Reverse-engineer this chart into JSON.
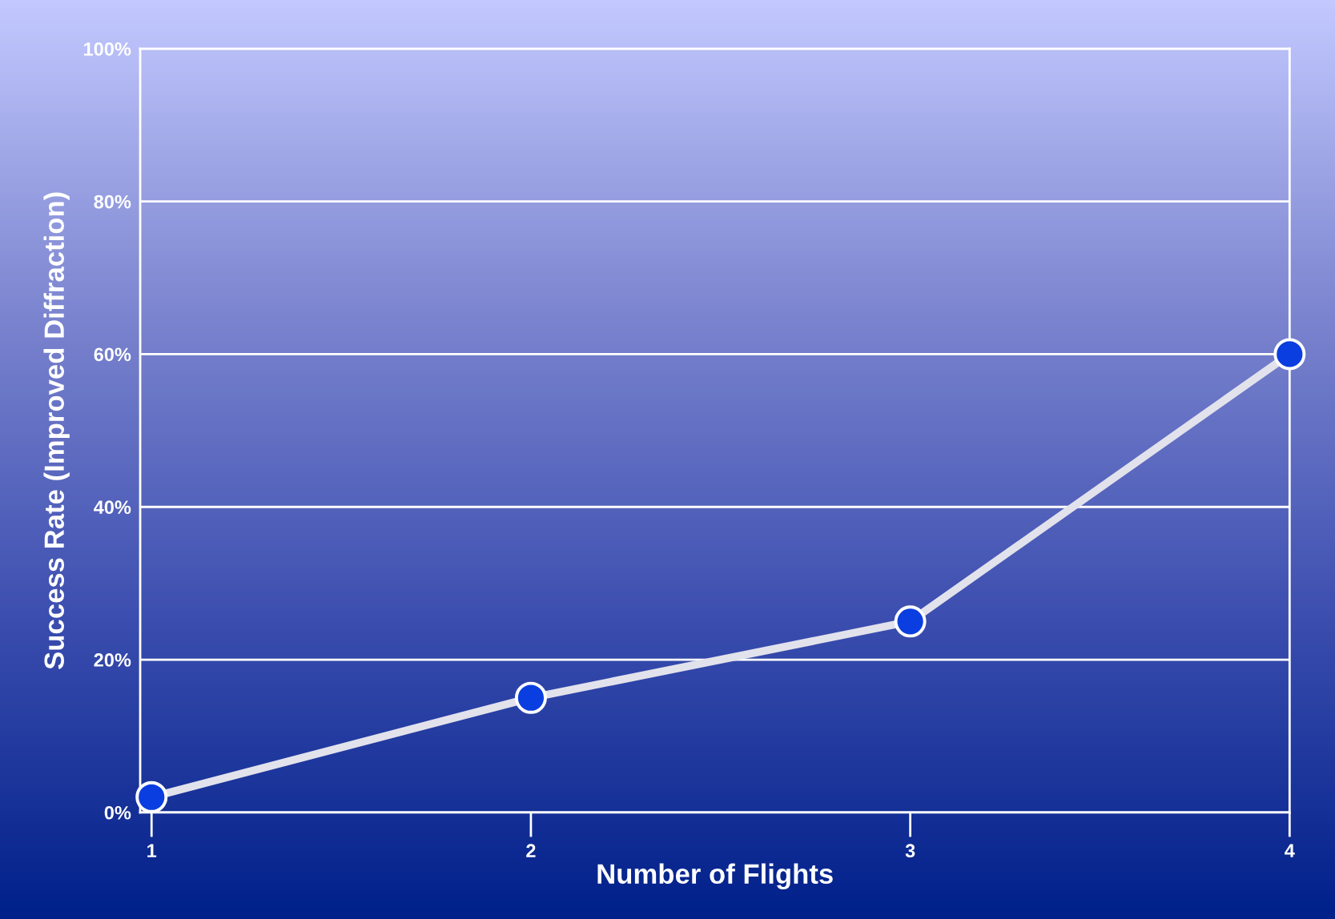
{
  "chart_data": {
    "type": "line",
    "xlabel": "Number of Flights",
    "ylabel": "Success Rate (Improved Diffraction)",
    "categories": [
      "1",
      "2",
      "3",
      "4"
    ],
    "series": [
      {
        "color": "#e2e2ec",
        "values": [
          2,
          15,
          25,
          60
        ]
      }
    ],
    "ylim": [
      0,
      100
    ],
    "yticks": [
      {
        "value": 0,
        "label": "0%"
      },
      {
        "value": 20,
        "label": "20%"
      },
      {
        "value": 40,
        "label": "40%"
      },
      {
        "value": 60,
        "label": "60%"
      },
      {
        "value": 80,
        "label": "80%"
      },
      {
        "value": 100,
        "label": "100%"
      }
    ],
    "grid": "y",
    "marker": "circle",
    "line_style": "solid",
    "legend": false
  }
}
